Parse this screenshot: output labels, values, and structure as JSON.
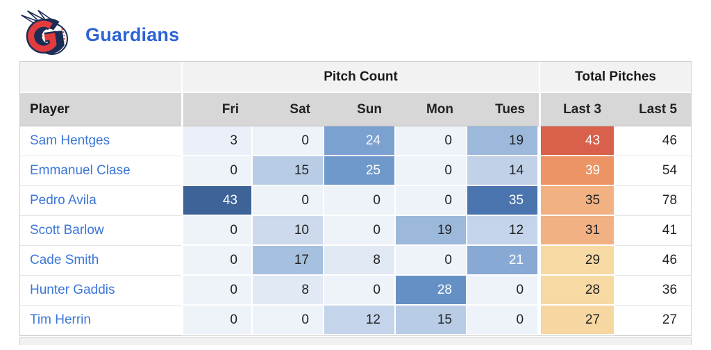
{
  "header": {
    "team_name": "Guardians",
    "title_color": "#2c63d5"
  },
  "table": {
    "group_headers": [
      {
        "label": "",
        "span": 1
      },
      {
        "label": "Pitch Count",
        "span": 5
      },
      {
        "label": "Total Pitches",
        "span": 2
      }
    ],
    "columns": [
      "Player",
      "Fri",
      "Sat",
      "Sun",
      "Mon",
      "Tues",
      "Last 3",
      "Last 5"
    ],
    "rows": [
      {
        "player": "Sam Hentges",
        "days": [
          3,
          0,
          24,
          0,
          19
        ],
        "last3": 43,
        "last5": 46
      },
      {
        "player": "Emmanuel Clase",
        "days": [
          0,
          15,
          25,
          0,
          14
        ],
        "last3": 39,
        "last5": 54
      },
      {
        "player": "Pedro Avila",
        "days": [
          43,
          0,
          0,
          0,
          35
        ],
        "last3": 35,
        "last5": 78
      },
      {
        "player": "Scott Barlow",
        "days": [
          0,
          10,
          0,
          19,
          12
        ],
        "last3": 31,
        "last5": 41
      },
      {
        "player": "Cade Smith",
        "days": [
          0,
          17,
          8,
          0,
          21
        ],
        "last3": 29,
        "last5": 46
      },
      {
        "player": "Hunter Gaddis",
        "days": [
          0,
          8,
          0,
          28,
          0
        ],
        "last3": 28,
        "last5": 36
      },
      {
        "player": "Tim Herrin",
        "days": [
          0,
          0,
          12,
          15,
          0
        ],
        "last3": 27,
        "last5": 27
      }
    ],
    "colors": {
      "player_link": "#3b76d8",
      "header_group_bg": "#f2f2f2",
      "header_col_bg": "#d7d7d7",
      "cell_text_dark": "#222222",
      "cell_text_light": "#ffffff",
      "blue_scale": {
        "0": "#eef2f9",
        "3": "#ebf0f8",
        "8": "#e1e9f4",
        "10": "#cdd9ec",
        "12": "#c4d4ea",
        "14": "#c0d1e8",
        "15": "#b8cce6",
        "17": "#a6c0df",
        "19": "#9cb9dc",
        "21": "#87a9d4",
        "24": "#7ba1d0",
        "25": "#7099cb",
        "28": "#6490c6",
        "35": "#4a74ad",
        "43": "#3d6398"
      },
      "blue_white_text_min": 21,
      "orange_scale": {
        "27": "#f6d7a1",
        "28": "#f7d9a4",
        "29": "#f7d9a4",
        "31": "#f2b183",
        "35": "#f2b183",
        "39": "#ec9464",
        "43": "#d9604a"
      },
      "orange_white_text_min": 39
    }
  }
}
